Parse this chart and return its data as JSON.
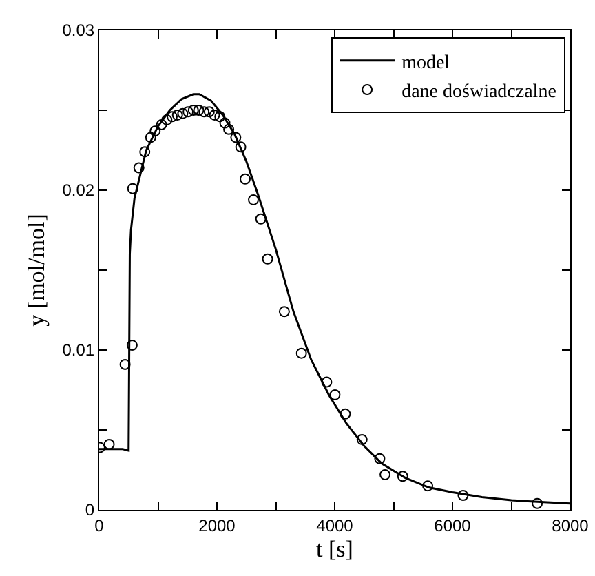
{
  "chart_data": {
    "type": "scatter",
    "xlabel": "t [s]",
    "ylabel": "y [mol/mol]",
    "xlim": [
      0,
      8000
    ],
    "ylim": [
      0,
      0.03
    ],
    "xticks": [
      0,
      {
        "value": 1000,
        "label": null
      },
      2000,
      {
        "value": 3000,
        "label": null
      },
      4000,
      {
        "value": 5000,
        "label": null
      },
      6000,
      {
        "value": 7000,
        "label": null
      },
      8000
    ],
    "yticks": [
      0,
      {
        "value": 0.005,
        "label": null
      },
      0.01,
      {
        "value": 0.015,
        "label": null
      },
      0.02,
      {
        "value": 0.025,
        "label": null
      },
      0.03
    ],
    "legend": "top right",
    "series": [
      {
        "name": "model",
        "type": "line",
        "color": "#000000",
        "marker": "none",
        "line_style": "solid",
        "x": [
          0,
          200,
          400,
          500,
          520,
          540,
          600,
          800,
          1000,
          1200,
          1400,
          1600,
          1700,
          1900,
          2100,
          2300,
          2500,
          2700,
          3000,
          3300,
          3600,
          3900,
          4200,
          4500,
          4800,
          5200,
          5600,
          6000,
          6500,
          7000,
          7500,
          8000
        ],
        "values": [
          0.0038,
          0.0038,
          0.0038,
          0.0037,
          0.016,
          0.0175,
          0.0195,
          0.0225,
          0.024,
          0.025,
          0.0257,
          0.026,
          0.026,
          0.0256,
          0.0247,
          0.0235,
          0.0218,
          0.0197,
          0.0163,
          0.0124,
          0.0094,
          0.0072,
          0.0054,
          0.004,
          0.0029,
          0.002,
          0.0014,
          0.0011,
          0.0008,
          0.0006,
          0.0005,
          0.0004
        ]
      },
      {
        "name": "dane doświadczalne",
        "color": "#000000",
        "marker": "circle",
        "x": [
          10,
          170,
          440,
          560,
          570,
          675,
          775,
          875,
          950,
          1060,
          1150,
          1240,
          1330,
          1420,
          1510,
          1600,
          1690,
          1780,
          1870,
          1960,
          2050,
          2135,
          2200,
          2320,
          2405,
          2480,
          2620,
          2745,
          2860,
          3145,
          3435,
          3865,
          4005,
          4180,
          4465,
          4765,
          4855,
          5155,
          5580,
          6180,
          7440
        ],
        "values": [
          0.0039,
          0.0041,
          0.0091,
          0.0103,
          0.0201,
          0.0214,
          0.0224,
          0.0233,
          0.0237,
          0.0241,
          0.0244,
          0.0246,
          0.0247,
          0.0248,
          0.0249,
          0.025,
          0.025,
          0.0249,
          0.0249,
          0.0247,
          0.0246,
          0.0242,
          0.0238,
          0.0233,
          0.0227,
          0.0207,
          0.0194,
          0.0182,
          0.0157,
          0.0124,
          0.0098,
          0.008,
          0.0072,
          0.006,
          0.0044,
          0.0032,
          0.0022,
          0.0021,
          0.0015,
          0.0009,
          0.0004
        ]
      }
    ]
  }
}
